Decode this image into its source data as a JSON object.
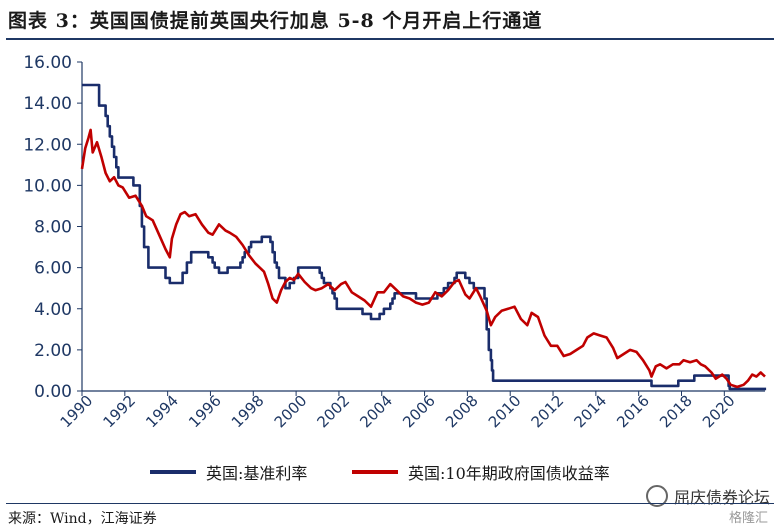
{
  "title": "图表 3：英国国债提前英国央行加息 5-8 个月开启上行通道",
  "source": "来源：Wind，江海证券",
  "watermark": "屈庆债券论坛",
  "watermark2": "格隆汇",
  "colors": {
    "accent": "#1f3864",
    "base_rate": "#1a2d6b",
    "gilt": "#c00000"
  },
  "chart_data": {
    "type": "line",
    "xlim": [
      1990,
      2021.9
    ],
    "ylim": [
      0,
      16
    ],
    "y_ticks": [
      "0.00",
      "2.00",
      "4.00",
      "6.00",
      "8.00",
      "10.00",
      "12.00",
      "14.00",
      "16.00"
    ],
    "x_ticks": [
      "1990",
      "1992",
      "1994",
      "1996",
      "1998",
      "2000",
      "2002",
      "2004",
      "2006",
      "2008",
      "2010",
      "2012",
      "2014",
      "2016",
      "2018",
      "2020"
    ],
    "legend_position": "bottom",
    "series": [
      {
        "name": "英国:基准利率",
        "color": "#1a2d6b",
        "step": true,
        "points": [
          [
            1990.0,
            14.88
          ],
          [
            1990.8,
            13.88
          ],
          [
            1991.1,
            13.38
          ],
          [
            1991.2,
            12.88
          ],
          [
            1991.3,
            12.38
          ],
          [
            1991.4,
            11.88
          ],
          [
            1991.5,
            11.38
          ],
          [
            1991.6,
            10.88
          ],
          [
            1991.7,
            10.38
          ],
          [
            1992.4,
            10.0
          ],
          [
            1992.7,
            9.0
          ],
          [
            1992.8,
            8.0
          ],
          [
            1992.9,
            7.0
          ],
          [
            1993.1,
            6.0
          ],
          [
            1993.9,
            5.5
          ],
          [
            1994.1,
            5.25
          ],
          [
            1994.7,
            5.75
          ],
          [
            1994.9,
            6.25
          ],
          [
            1995.1,
            6.75
          ],
          [
            1995.9,
            6.5
          ],
          [
            1996.1,
            6.25
          ],
          [
            1996.2,
            6.0
          ],
          [
            1996.4,
            5.75
          ],
          [
            1996.8,
            6.0
          ],
          [
            1997.4,
            6.25
          ],
          [
            1997.5,
            6.5
          ],
          [
            1997.6,
            6.75
          ],
          [
            1997.8,
            7.0
          ],
          [
            1997.9,
            7.25
          ],
          [
            1998.4,
            7.5
          ],
          [
            1998.8,
            7.25
          ],
          [
            1998.9,
            6.75
          ],
          [
            1999.0,
            6.25
          ],
          [
            1999.1,
            6.0
          ],
          [
            1999.2,
            5.5
          ],
          [
            1999.5,
            5.0
          ],
          [
            1999.7,
            5.25
          ],
          [
            1999.9,
            5.5
          ],
          [
            2000.1,
            6.0
          ],
          [
            2001.1,
            5.75
          ],
          [
            2001.2,
            5.5
          ],
          [
            2001.3,
            5.25
          ],
          [
            2001.6,
            5.0
          ],
          [
            2001.7,
            4.75
          ],
          [
            2001.8,
            4.5
          ],
          [
            2001.9,
            4.0
          ],
          [
            2003.1,
            3.75
          ],
          [
            2003.5,
            3.5
          ],
          [
            2003.9,
            3.75
          ],
          [
            2004.1,
            4.0
          ],
          [
            2004.4,
            4.25
          ],
          [
            2004.5,
            4.5
          ],
          [
            2004.6,
            4.75
          ],
          [
            2005.6,
            4.5
          ],
          [
            2006.6,
            4.75
          ],
          [
            2006.9,
            5.0
          ],
          [
            2007.1,
            5.25
          ],
          [
            2007.4,
            5.5
          ],
          [
            2007.5,
            5.75
          ],
          [
            2007.9,
            5.5
          ],
          [
            2008.1,
            5.25
          ],
          [
            2008.3,
            5.0
          ],
          [
            2008.8,
            4.5
          ],
          [
            2008.9,
            3.0
          ],
          [
            2009.0,
            2.0
          ],
          [
            2009.1,
            1.5
          ],
          [
            2009.15,
            1.0
          ],
          [
            2009.2,
            0.5
          ],
          [
            2016.6,
            0.25
          ],
          [
            2017.85,
            0.5
          ],
          [
            2018.6,
            0.75
          ],
          [
            2020.2,
            0.25
          ],
          [
            2020.25,
            0.1
          ],
          [
            2021.95,
            0.1
          ]
        ]
      },
      {
        "name": "英国:10年期政府国债收益率",
        "color": "#c00000",
        "step": false,
        "points": [
          [
            1990.0,
            10.8
          ],
          [
            1990.15,
            11.8
          ],
          [
            1990.3,
            12.3
          ],
          [
            1990.4,
            12.7
          ],
          [
            1990.5,
            11.6
          ],
          [
            1990.7,
            12.1
          ],
          [
            1990.9,
            11.4
          ],
          [
            1991.1,
            10.6
          ],
          [
            1991.3,
            10.2
          ],
          [
            1991.5,
            10.4
          ],
          [
            1991.7,
            10.0
          ],
          [
            1991.9,
            9.9
          ],
          [
            1992.2,
            9.4
          ],
          [
            1992.5,
            9.5
          ],
          [
            1992.8,
            9.0
          ],
          [
            1993.0,
            8.5
          ],
          [
            1993.3,
            8.3
          ],
          [
            1993.6,
            7.6
          ],
          [
            1993.9,
            6.9
          ],
          [
            1994.1,
            6.5
          ],
          [
            1994.2,
            7.4
          ],
          [
            1994.4,
            8.1
          ],
          [
            1994.6,
            8.6
          ],
          [
            1994.8,
            8.7
          ],
          [
            1995.0,
            8.5
          ],
          [
            1995.3,
            8.6
          ],
          [
            1995.6,
            8.1
          ],
          [
            1995.9,
            7.7
          ],
          [
            1996.1,
            7.6
          ],
          [
            1996.4,
            8.1
          ],
          [
            1996.7,
            7.8
          ],
          [
            1996.9,
            7.7
          ],
          [
            1997.2,
            7.5
          ],
          [
            1997.5,
            7.1
          ],
          [
            1997.8,
            6.6
          ],
          [
            1998.1,
            6.2
          ],
          [
            1998.3,
            6.0
          ],
          [
            1998.5,
            5.8
          ],
          [
            1998.7,
            5.2
          ],
          [
            1998.9,
            4.5
          ],
          [
            1999.1,
            4.3
          ],
          [
            1999.3,
            4.9
          ],
          [
            1999.5,
            5.3
          ],
          [
            1999.7,
            5.5
          ],
          [
            1999.9,
            5.4
          ],
          [
            2000.1,
            5.7
          ],
          [
            2000.4,
            5.3
          ],
          [
            2000.7,
            5.0
          ],
          [
            2000.9,
            4.9
          ],
          [
            2001.2,
            5.0
          ],
          [
            2001.5,
            5.2
          ],
          [
            2001.8,
            4.9
          ],
          [
            2002.1,
            5.2
          ],
          [
            2002.3,
            5.3
          ],
          [
            2002.6,
            4.8
          ],
          [
            2002.9,
            4.6
          ],
          [
            2003.2,
            4.4
          ],
          [
            2003.5,
            4.1
          ],
          [
            2003.8,
            4.8
          ],
          [
            2004.1,
            4.8
          ],
          [
            2004.4,
            5.2
          ],
          [
            2004.7,
            4.9
          ],
          [
            2005.0,
            4.6
          ],
          [
            2005.3,
            4.5
          ],
          [
            2005.6,
            4.3
          ],
          [
            2005.9,
            4.2
          ],
          [
            2006.2,
            4.3
          ],
          [
            2006.5,
            4.8
          ],
          [
            2006.8,
            4.6
          ],
          [
            2007.1,
            4.9
          ],
          [
            2007.4,
            5.3
          ],
          [
            2007.6,
            5.4
          ],
          [
            2007.9,
            4.7
          ],
          [
            2008.1,
            4.5
          ],
          [
            2008.4,
            5.0
          ],
          [
            2008.6,
            4.6
          ],
          [
            2008.9,
            3.9
          ],
          [
            2009.1,
            3.2
          ],
          [
            2009.3,
            3.6
          ],
          [
            2009.6,
            3.9
          ],
          [
            2009.9,
            4.0
          ],
          [
            2010.2,
            4.1
          ],
          [
            2010.5,
            3.5
          ],
          [
            2010.8,
            3.2
          ],
          [
            2011.0,
            3.8
          ],
          [
            2011.3,
            3.6
          ],
          [
            2011.6,
            2.7
          ],
          [
            2011.9,
            2.2
          ],
          [
            2012.2,
            2.2
          ],
          [
            2012.5,
            1.7
          ],
          [
            2012.8,
            1.8
          ],
          [
            2013.1,
            2.0
          ],
          [
            2013.4,
            2.2
          ],
          [
            2013.6,
            2.6
          ],
          [
            2013.9,
            2.8
          ],
          [
            2014.2,
            2.7
          ],
          [
            2014.5,
            2.6
          ],
          [
            2014.8,
            2.1
          ],
          [
            2015.0,
            1.6
          ],
          [
            2015.3,
            1.8
          ],
          [
            2015.6,
            2.0
          ],
          [
            2015.9,
            1.9
          ],
          [
            2016.2,
            1.5
          ],
          [
            2016.5,
            1.0
          ],
          [
            2016.6,
            0.7
          ],
          [
            2016.8,
            1.2
          ],
          [
            2017.0,
            1.3
          ],
          [
            2017.3,
            1.1
          ],
          [
            2017.6,
            1.3
          ],
          [
            2017.9,
            1.3
          ],
          [
            2018.1,
            1.5
          ],
          [
            2018.4,
            1.4
          ],
          [
            2018.7,
            1.5
          ],
          [
            2018.9,
            1.3
          ],
          [
            2019.1,
            1.2
          ],
          [
            2019.4,
            0.9
          ],
          [
            2019.6,
            0.6
          ],
          [
            2019.9,
            0.8
          ],
          [
            2020.1,
            0.6
          ],
          [
            2020.3,
            0.3
          ],
          [
            2020.6,
            0.2
          ],
          [
            2020.9,
            0.3
          ],
          [
            2021.1,
            0.5
          ],
          [
            2021.3,
            0.8
          ],
          [
            2021.5,
            0.7
          ],
          [
            2021.7,
            0.9
          ],
          [
            2021.9,
            0.7
          ]
        ]
      }
    ]
  }
}
